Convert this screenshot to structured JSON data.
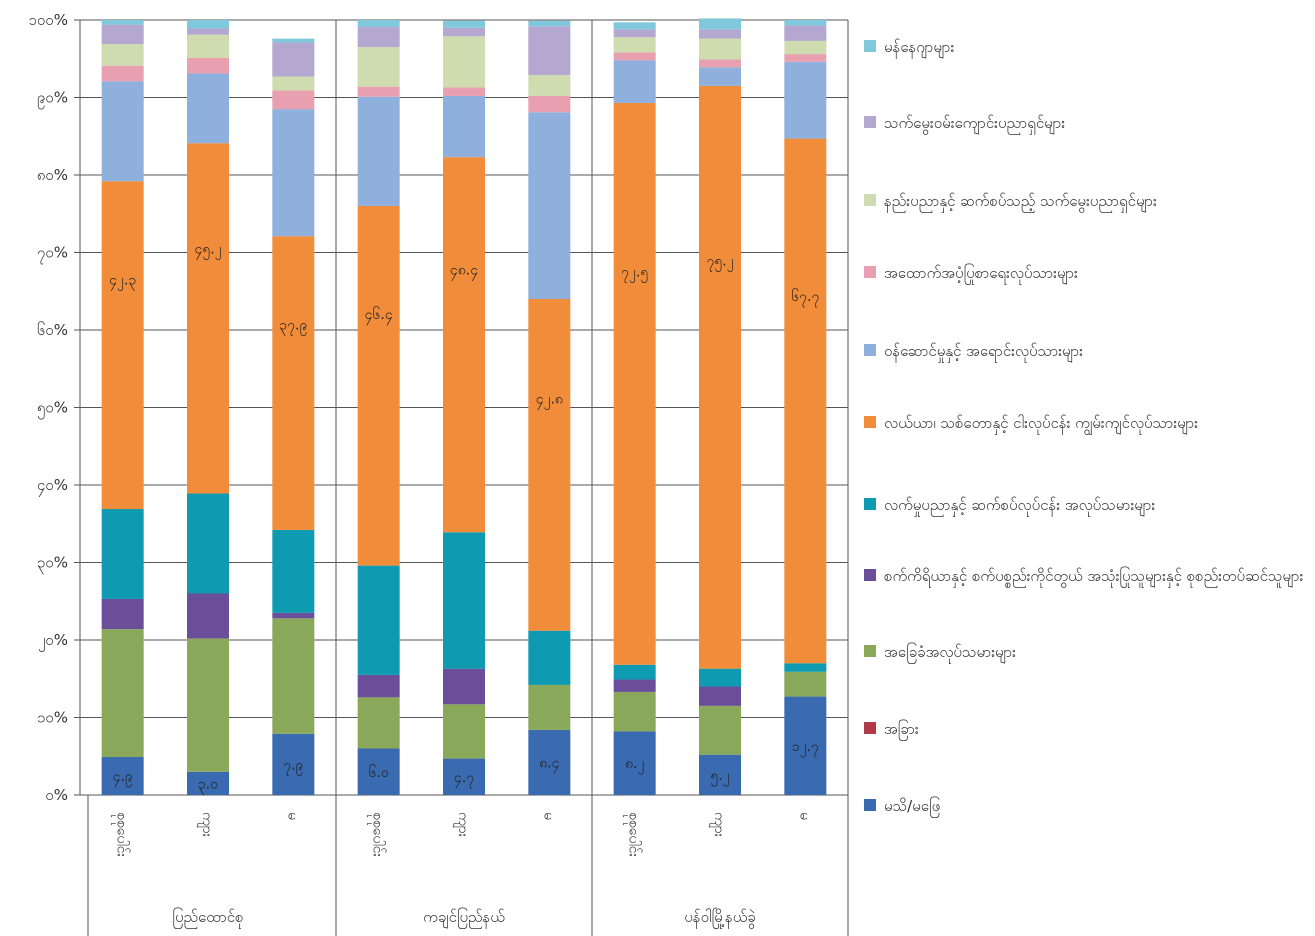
{
  "chart_data": {
    "type": "bar",
    "stacked": true,
    "percent": true,
    "ylim": [
      0,
      100
    ],
    "y_ticks": [
      "၀%",
      "၁၀%",
      "၂၀%",
      "၃၀%",
      "၄၀%",
      "၅၀%",
      "၆၀%",
      "၇၀%",
      "၈၀%",
      "၉၀%",
      "၁၀၀%"
    ],
    "categories": [
      "စုစုပေါင်း",
      "ကျား",
      "မ",
      "စုစုပေါင်း",
      "ကျား",
      "မ",
      "စုစုပေါင်း",
      "ကျား",
      "မ"
    ],
    "groups": [
      {
        "label": "ပြည်ထောင်စု",
        "count": 3
      },
      {
        "label": "ကချင်ပြည်နယ်",
        "count": 3
      },
      {
        "label": "ပန်ဝါမြို့နယ်ခွဲ",
        "count": 3
      }
    ],
    "series": [
      {
        "name": "မသိ/မဖြေ",
        "color": "#3a6ab0",
        "values": [
          4.9,
          3.0,
          7.9,
          6.0,
          4.7,
          8.4,
          8.2,
          5.2,
          12.7
        ],
        "labels": [
          "၄.၉",
          "၃.၀",
          "၇.၉",
          "၆.၀",
          "၄.၇",
          "၈.၄",
          "၈.၂",
          "၅.၂",
          "၁၂.၇"
        ]
      },
      {
        "name": "အခြား",
        "color": "#b03a48",
        "values": [
          0,
          0,
          0,
          0,
          0,
          0,
          0,
          0,
          0
        ],
        "labels": []
      },
      {
        "name": "အခြေခံအလုပ်သမားများ",
        "color": "#8aa85a",
        "values": [
          16.5,
          17.2,
          14.9,
          6.6,
          7.0,
          5.8,
          5.1,
          6.3,
          3.2
        ],
        "labels": []
      },
      {
        "name": "စက်ကိရိယာနှင့် စက်ပစ္စည်းကိုင်တွယ် အသုံးပြုသူများနှင့် စုစည်းတပ်ဆင်သူများ",
        "color": "#6a4e9a",
        "values": [
          3.9,
          5.8,
          0.7,
          2.9,
          4.6,
          0,
          1.6,
          2.5,
          0
        ],
        "labels": []
      },
      {
        "name": "လက်မှုပညာနှင့် ဆက်စပ်လုပ်ငန်း အလုပ်သမားများ",
        "color": "#0e9ab0",
        "values": [
          11.6,
          12.9,
          10.7,
          14.1,
          17.6,
          7.0,
          1.9,
          2.3,
          1.1
        ],
        "labels": []
      },
      {
        "name": "လယ်ယာ၊ သစ်တောနှင့် ငါးလုပ်ငန်း ကျွမ်းကျင်လုပ်သားများ",
        "color": "#f08c3a",
        "values": [
          42.3,
          45.2,
          37.9,
          46.4,
          48.4,
          42.8,
          72.5,
          75.2,
          67.7
        ],
        "labels": [
          "၄၂.၃",
          "၄၅.၂",
          "၃၇.၉",
          "၄၆.၄",
          "၄၈.၄",
          "၄၂.၈",
          "၇၂.၅",
          "၇၅.၂",
          "၆၇.၇"
        ]
      },
      {
        "name": "ဝန်ဆောင်မှုနှင့် အရောင်းလုပ်သားများ",
        "color": "#8fb0dc",
        "values": [
          12.9,
          9.0,
          16.4,
          14.1,
          7.9,
          24.1,
          5.5,
          2.4,
          9.9
        ],
        "labels": []
      },
      {
        "name": "အထောက်အပံ့ပြုစာရေးလုပ်သားများ",
        "color": "#e8a0b0",
        "values": [
          2.0,
          2.0,
          2.4,
          1.3,
          1.1,
          2.1,
          1.0,
          1.0,
          1.0
        ],
        "labels": []
      },
      {
        "name": "နည်းပညာနှင့် ဆက်စပ်သည့် သက်မွေးပညာရှင်များ",
        "color": "#cfdcb0",
        "values": [
          2.8,
          3.0,
          1.8,
          5.1,
          6.6,
          2.7,
          2.0,
          2.7,
          1.7
        ],
        "labels": []
      },
      {
        "name": "သက်မွေးဝမ်းကျောင်းပညာရှင်များ",
        "color": "#b4a8d0",
        "values": [
          2.5,
          0.8,
          4.4,
          2.6,
          1.1,
          6.3,
          1.0,
          1.2,
          2.0
        ],
        "labels": []
      },
      {
        "name": "မန်နေဂျာများ",
        "color": "#80c8dc",
        "values": [
          0.6,
          1.1,
          0.5,
          0.9,
          0.9,
          0.7,
          0.9,
          1.4,
          0.7
        ],
        "labels": []
      }
    ],
    "legend_placement": "right"
  }
}
